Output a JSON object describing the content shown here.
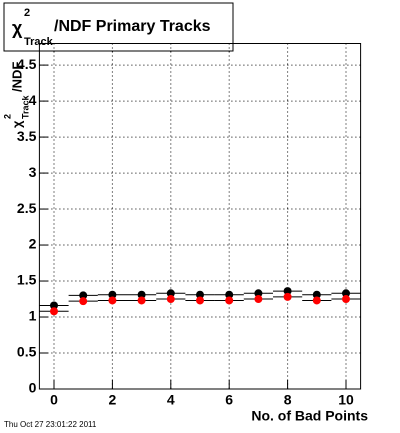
{
  "chart_data": {
    "type": "scatter",
    "title": {
      "symbol": "χ",
      "sup": "2",
      "sub": "Track",
      "rest": "/NDF Primary Tracks"
    },
    "y_label": {
      "symbol": "χ",
      "sup": "2",
      "sub": "Track",
      "rest": "/NDF"
    },
    "x_label": "No. of Bad Points",
    "timestamp": "Thu Oct 27 23:01:22 2011",
    "x": [
      0,
      1,
      2,
      3,
      4,
      5,
      6,
      7,
      8,
      9,
      10
    ],
    "series": [
      {
        "color": "#000000",
        "values": [
          1.16,
          1.3,
          1.31,
          1.31,
          1.33,
          1.31,
          1.31,
          1.33,
          1.36,
          1.31,
          1.33
        ]
      },
      {
        "color": "#ff0000",
        "values": [
          1.08,
          1.22,
          1.23,
          1.23,
          1.25,
          1.23,
          1.23,
          1.25,
          1.28,
          1.23,
          1.25
        ]
      }
    ],
    "xlim": [
      -0.5,
      10.5
    ],
    "xticks": [
      0,
      2,
      4,
      6,
      8,
      10
    ],
    "ylim": [
      0,
      4.8
    ],
    "yticks": [
      0,
      0.5,
      1,
      1.5,
      2,
      2.5,
      3,
      3.5,
      4,
      4.5
    ],
    "grid": true
  }
}
